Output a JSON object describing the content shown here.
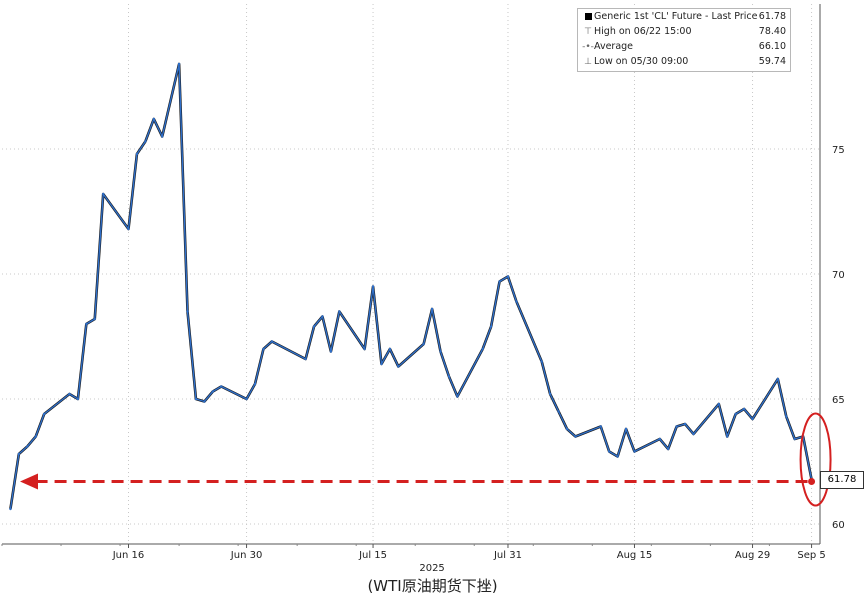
{
  "chart_data": {
    "type": "line",
    "series": [
      {
        "name": "Generic 1st 'CL' Future - Last Price",
        "color": "#2f6fc9",
        "points": [
          [
            "06/02",
            60.6
          ],
          [
            "06/03",
            62.8
          ],
          [
            "06/04",
            63.1
          ],
          [
            "06/05",
            63.5
          ],
          [
            "06/06",
            64.4
          ],
          [
            "06/09",
            65.2
          ],
          [
            "06/10",
            65.0
          ],
          [
            "06/11",
            68.0
          ],
          [
            "06/12",
            68.2
          ],
          [
            "06/13",
            73.2
          ],
          [
            "06/16",
            71.8
          ],
          [
            "06/17",
            74.8
          ],
          [
            "06/18",
            75.3
          ],
          [
            "06/19",
            76.2
          ],
          [
            "06/20",
            75.5
          ],
          [
            "06/22",
            78.4
          ],
          [
            "06/23",
            68.5
          ],
          [
            "06/24",
            65.0
          ],
          [
            "06/25",
            64.9
          ],
          [
            "06/26",
            65.3
          ],
          [
            "06/27",
            65.5
          ],
          [
            "06/30",
            65.0
          ],
          [
            "07/01",
            65.6
          ],
          [
            "07/02",
            67.0
          ],
          [
            "07/03",
            67.3
          ],
          [
            "07/07",
            66.6
          ],
          [
            "07/08",
            67.9
          ],
          [
            "07/09",
            68.3
          ],
          [
            "07/10",
            66.9
          ],
          [
            "07/11",
            68.5
          ],
          [
            "07/14",
            67.0
          ],
          [
            "07/15",
            69.5
          ],
          [
            "07/16",
            66.4
          ],
          [
            "07/17",
            67.0
          ],
          [
            "07/18",
            66.3
          ],
          [
            "07/21",
            67.2
          ],
          [
            "07/22",
            68.6
          ],
          [
            "07/23",
            66.9
          ],
          [
            "07/24",
            65.9
          ],
          [
            "07/25",
            65.1
          ],
          [
            "07/28",
            67.0
          ],
          [
            "07/29",
            67.9
          ],
          [
            "07/30",
            69.7
          ],
          [
            "07/31",
            69.9
          ],
          [
            "08/01",
            68.9
          ],
          [
            "08/04",
            66.5
          ],
          [
            "08/05",
            65.2
          ],
          [
            "08/06",
            64.5
          ],
          [
            "08/07",
            63.8
          ],
          [
            "08/08",
            63.5
          ],
          [
            "08/11",
            63.9
          ],
          [
            "08/12",
            62.9
          ],
          [
            "08/13",
            62.7
          ],
          [
            "08/14",
            63.8
          ],
          [
            "08/15",
            62.9
          ],
          [
            "08/18",
            63.4
          ],
          [
            "08/19",
            63.0
          ],
          [
            "08/20",
            63.9
          ],
          [
            "08/21",
            64.0
          ],
          [
            "08/22",
            63.6
          ],
          [
            "08/25",
            64.8
          ],
          [
            "08/26",
            63.5
          ],
          [
            "08/27",
            64.4
          ],
          [
            "08/28",
            64.6
          ],
          [
            "08/29",
            64.2
          ],
          [
            "09/01",
            65.8
          ],
          [
            "09/02",
            64.3
          ],
          [
            "09/03",
            63.4
          ],
          [
            "09/04",
            63.5
          ],
          [
            "09/05",
            61.78
          ]
        ]
      }
    ],
    "legend": {
      "placement": "top-right",
      "entries": [
        {
          "symbol": "square",
          "label": "Generic 1st 'CL' Future - Last Price",
          "value": "61.78"
        },
        {
          "symbol": "⊤",
          "label": "High on 06/22 15:00",
          "value": "78.40"
        },
        {
          "symbol": "-•-",
          "label": "Average",
          "value": "66.10"
        },
        {
          "symbol": "⊥",
          "label": "Low on 05/30 09:00",
          "value": "59.74"
        }
      ]
    },
    "x_ticks": [
      {
        "date": "06/16",
        "label": "Jun 16"
      },
      {
        "date": "06/30",
        "label": "Jun 30"
      },
      {
        "date": "07/15",
        "label": "Jul 15"
      },
      {
        "date": "07/31",
        "label": "Jul 31"
      },
      {
        "date": "08/15",
        "label": "Aug 15"
      },
      {
        "date": "08/29",
        "label": "Aug 29"
      },
      {
        "date": "09/05",
        "label": "Sep 5"
      }
    ],
    "x_year_label": "2025",
    "y_ticks": [
      60,
      65,
      70,
      75
    ],
    "ylim": [
      59.2,
      80.8
    ],
    "last_value_label": "61.78",
    "grid": true,
    "highlight_color": "#d42020",
    "annotation": "dashed arrow pointing left at last price, circled end point"
  },
  "caption": "(WTI原油期货下挫)"
}
